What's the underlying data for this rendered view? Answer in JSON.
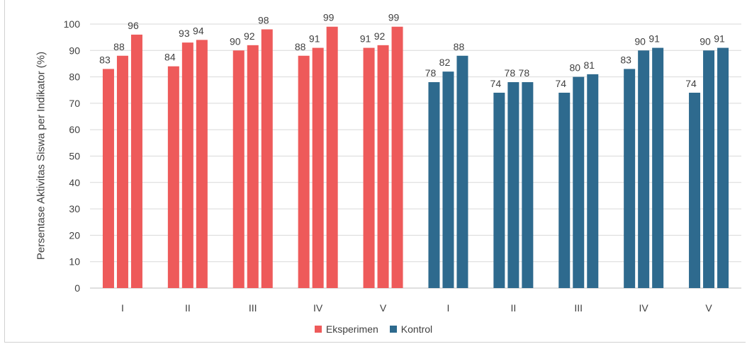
{
  "chart_data": {
    "type": "bar",
    "ylabel": "Persentase Aktivitas Siswa per Indikator (%)",
    "xlabel": "",
    "ylim": [
      0,
      100
    ],
    "yticks": [
      0,
      10,
      20,
      30,
      40,
      50,
      60,
      70,
      80,
      90,
      100
    ],
    "grid": true,
    "legend_position": "bottom",
    "categories": [
      "I",
      "II",
      "III",
      "IV",
      "V",
      "I",
      "II",
      "III",
      "IV",
      "V"
    ],
    "groups": [
      {
        "label": "I",
        "series": "Eksperimen",
        "values": [
          83,
          88,
          96
        ]
      },
      {
        "label": "II",
        "series": "Eksperimen",
        "values": [
          84,
          93,
          94
        ]
      },
      {
        "label": "III",
        "series": "Eksperimen",
        "values": [
          90,
          92,
          98
        ]
      },
      {
        "label": "IV",
        "series": "Eksperimen",
        "values": [
          88,
          91,
          99
        ]
      },
      {
        "label": "V",
        "series": "Eksperimen",
        "values": [
          91,
          92,
          99
        ]
      },
      {
        "label": "I",
        "series": "Kontrol",
        "values": [
          78,
          82,
          88
        ]
      },
      {
        "label": "II",
        "series": "Kontrol",
        "values": [
          74,
          78,
          78
        ]
      },
      {
        "label": "III",
        "series": "Kontrol",
        "values": [
          74,
          80,
          81
        ]
      },
      {
        "label": "IV",
        "series": "Kontrol",
        "values": [
          83,
          90,
          91
        ]
      },
      {
        "label": "V",
        "series": "Kontrol",
        "values": [
          74,
          90,
          91
        ]
      }
    ],
    "series": [
      {
        "name": "Eksperimen",
        "color": "#ee5a5a"
      },
      {
        "name": "Kontrol",
        "color": "#2e6a8e"
      }
    ]
  }
}
